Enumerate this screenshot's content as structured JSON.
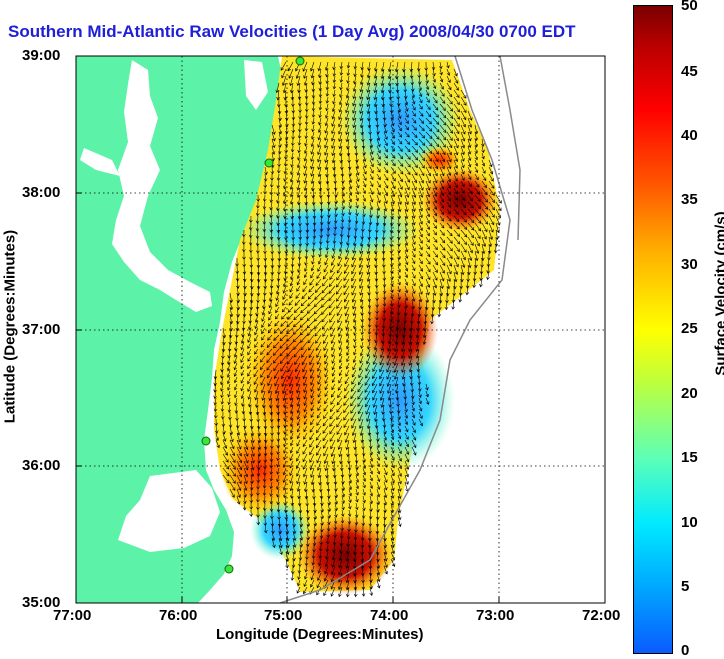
{
  "title": "Southern Mid-Atlantic Raw Velocities (1 Day Avg) 2008/04/30 0700 EDT",
  "x_axis": {
    "label": "Longitude (Degrees:Minutes)",
    "ticks": [
      "77:00",
      "76:00",
      "75:00",
      "74:00",
      "73:00",
      "72:00"
    ]
  },
  "y_axis": {
    "label": "Latitude (Degrees:Minutes)",
    "ticks": [
      "39:00",
      "38:00",
      "37:00",
      "36:00",
      "35:00"
    ]
  },
  "colorbar": {
    "label": "Surface Velocity (cm/s)",
    "ticks": [
      "50",
      "45",
      "40",
      "35",
      "30",
      "25",
      "20",
      "15",
      "10",
      "5",
      "0"
    ],
    "range": [
      0,
      50
    ]
  },
  "colors": {
    "land": "#5cf2a8",
    "ocean": "#ffffff",
    "title": "#1f1fd8",
    "site_marker": "#39e639",
    "arrow": "#000000"
  },
  "map_extent": {
    "lon": [
      -77,
      -72
    ],
    "lat": [
      35,
      39
    ]
  }
}
